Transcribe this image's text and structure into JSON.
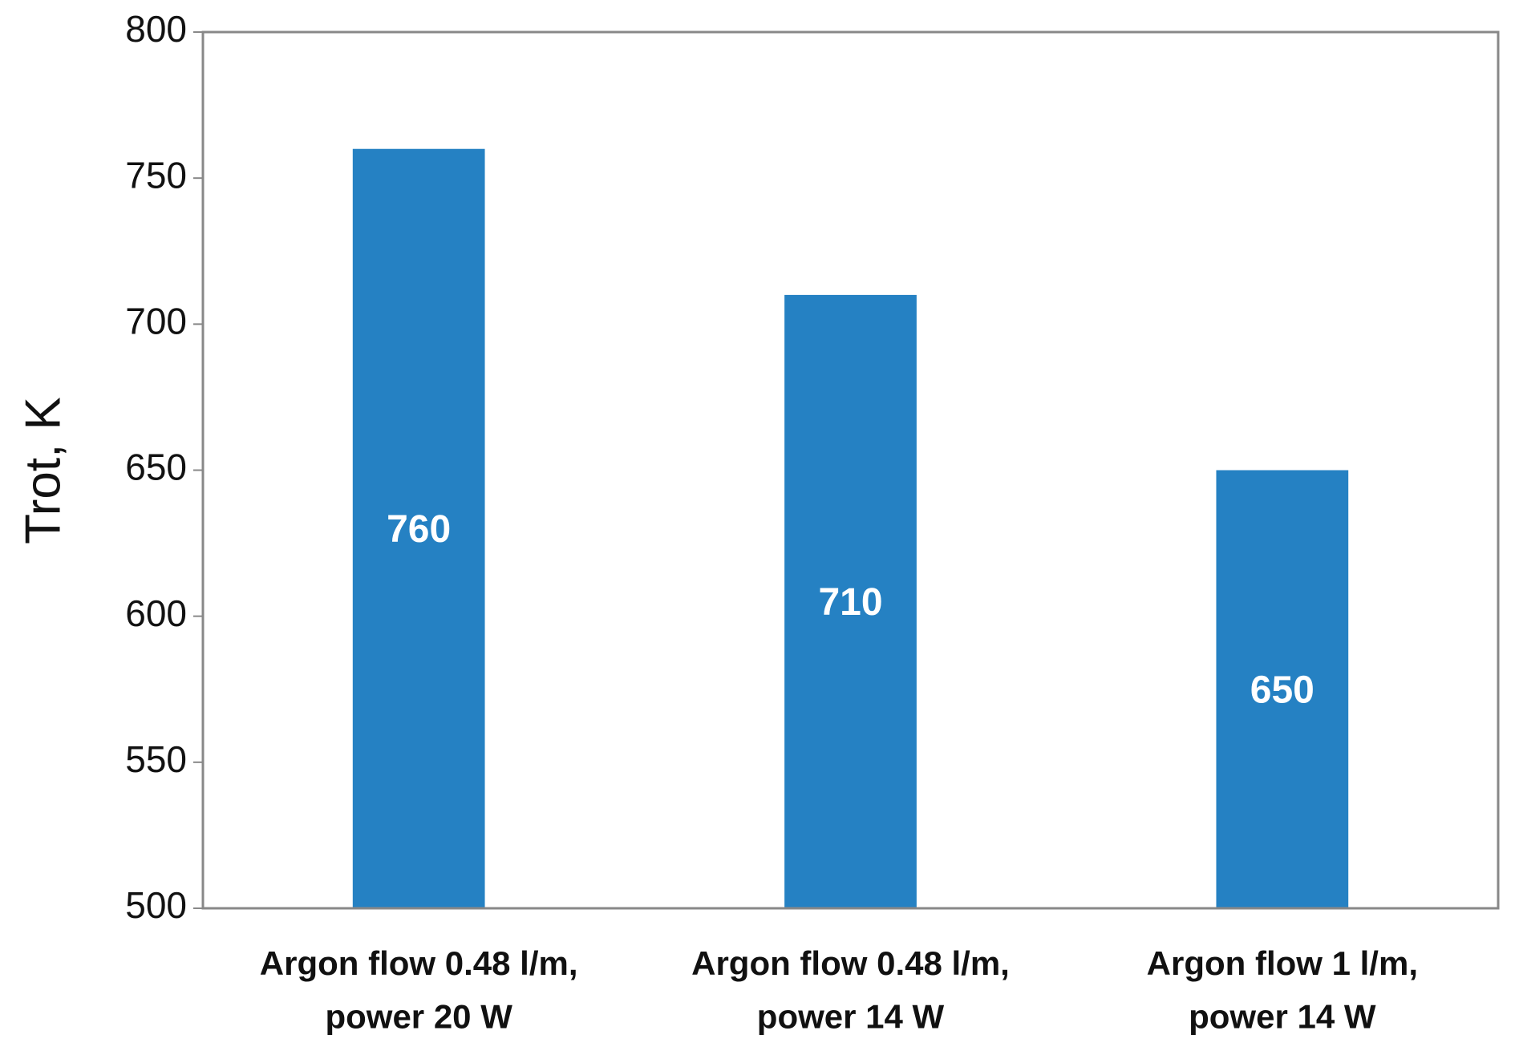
{
  "chart_data": {
    "type": "bar",
    "y_label": "Trot, K",
    "categories": [
      "Argon flow 0.48 l/m,\npower 20 W",
      "Argon flow 0.48 l/m,\npower 14 W",
      "Argon flow 1 l/m,\npower 14 W"
    ],
    "values": [
      760,
      710,
      650
    ],
    "color": "#2581c3",
    "ylim": [
      500,
      800
    ],
    "yticks": [
      500,
      550,
      600,
      650,
      700,
      750,
      800
    ],
    "grid": false,
    "data_labels": true
  }
}
